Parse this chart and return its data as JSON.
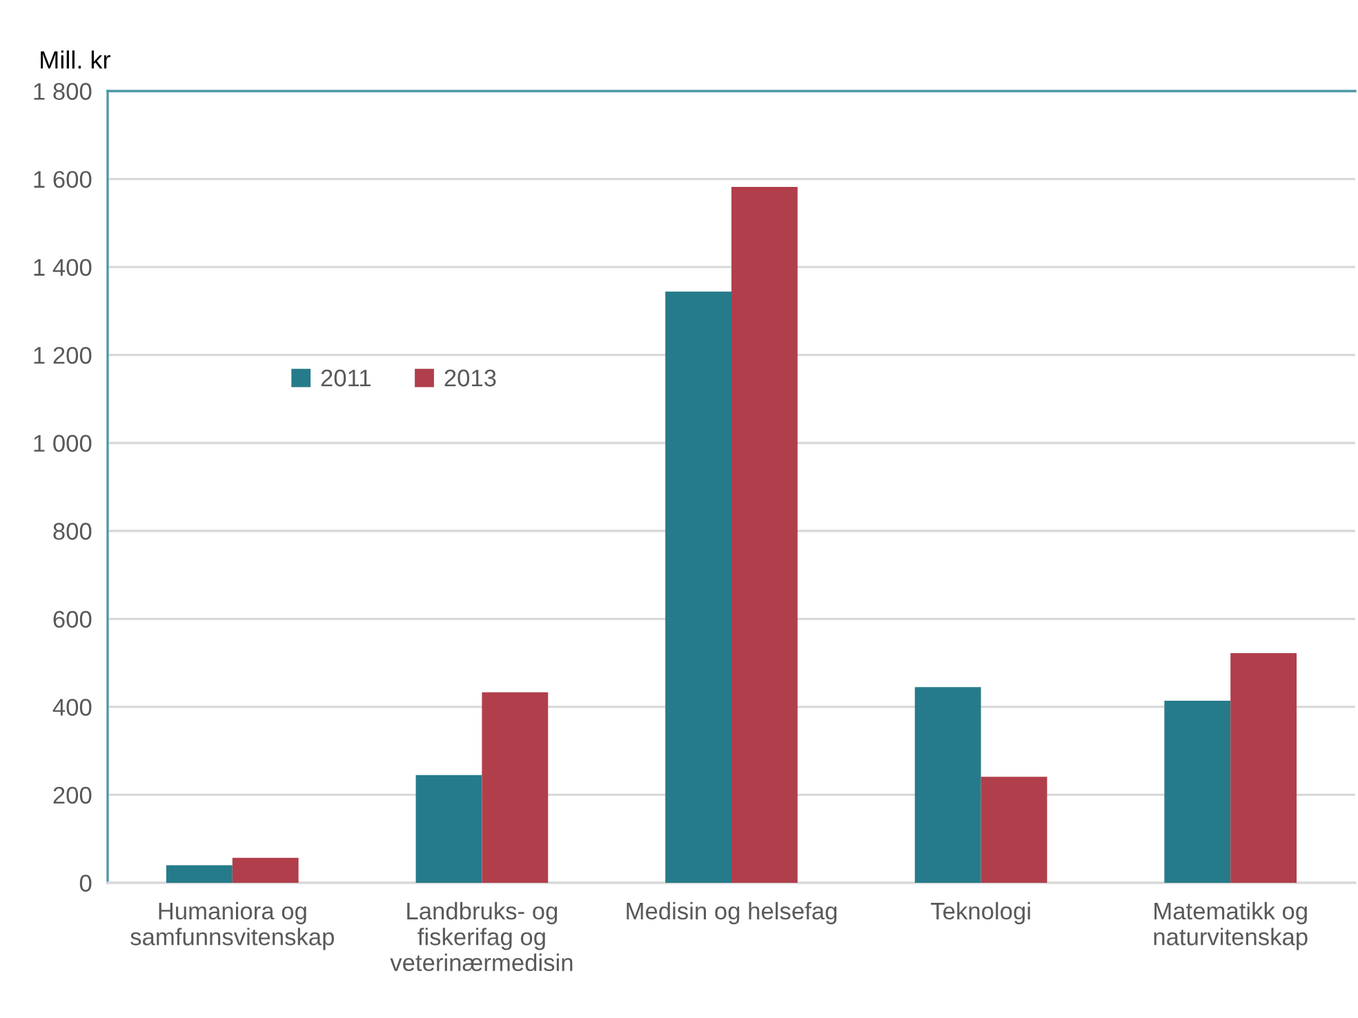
{
  "chart_data": {
    "type": "bar",
    "ylabel": "Mill. kr",
    "categories": [
      "Humaniora og\nsamfunnsvitenskap",
      "Landbruks- og\nfiskerifag og\nveterinærmedisin",
      "Medisin og helsefag",
      "Teknologi",
      "Matematikk og\nnaturvitenskap"
    ],
    "series": [
      {
        "name": "2011",
        "color": "#267b8a",
        "values": [
          40,
          245,
          1344,
          445,
          414
        ]
      },
      {
        "name": "2013",
        "color": "#b03f4b",
        "values": [
          57,
          433,
          1582,
          241,
          522
        ]
      }
    ],
    "ylim": [
      0,
      1800
    ],
    "yticks": [
      0,
      200,
      400,
      600,
      800,
      {
        "value": 1000,
        "label": "1 000"
      },
      {
        "value": 1200,
        "label": "1 200"
      },
      {
        "value": 1400,
        "label": "1 400"
      },
      {
        "value": 1600,
        "label": "1 600"
      },
      {
        "value": 1800,
        "label": "1 800"
      }
    ],
    "grid": "y",
    "legend": "left"
  }
}
